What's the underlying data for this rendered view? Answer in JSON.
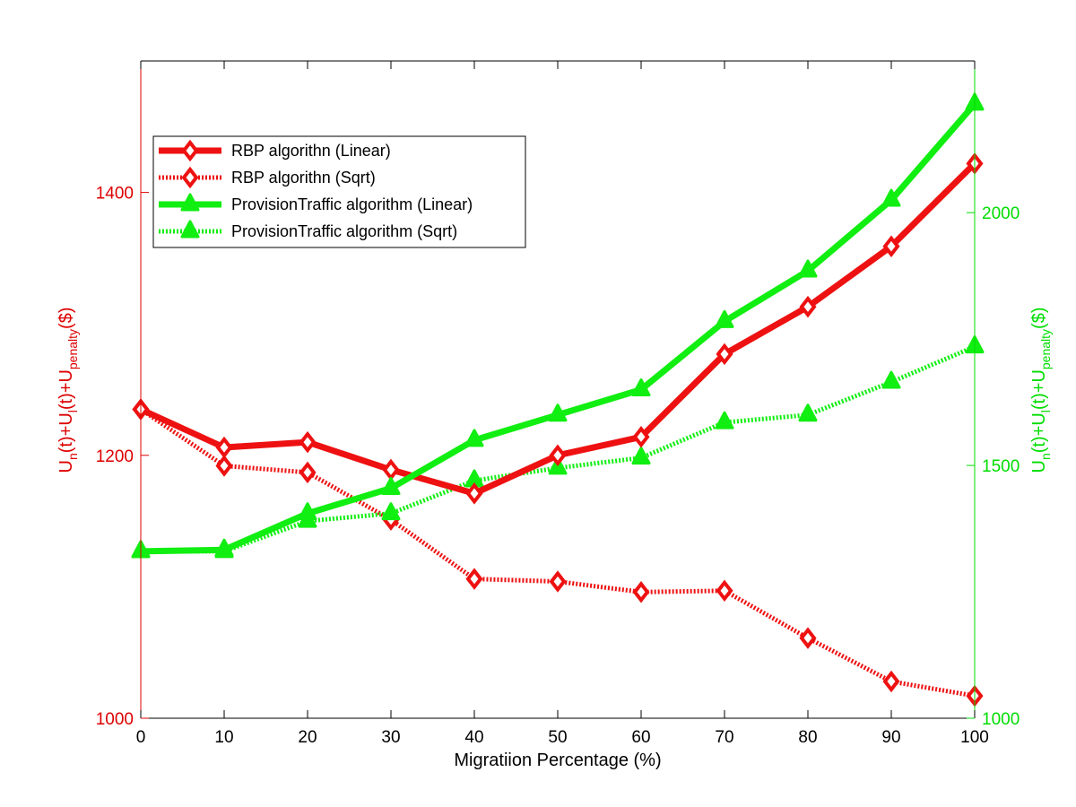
{
  "chart_data": {
    "type": "line",
    "x": [
      0,
      10,
      20,
      30,
      40,
      50,
      60,
      70,
      80,
      90,
      100
    ],
    "xlabel": "Migratiion Percentage (%)",
    "xlim": [
      0,
      100
    ],
    "xticks": [
      "0",
      "10",
      "20",
      "30",
      "40",
      "50",
      "60",
      "70",
      "80",
      "90",
      "100"
    ],
    "ylabel_left": {
      "base": "U",
      "parts": [
        {
          "t": "U"
        },
        {
          "t": "n",
          "sub": true
        },
        {
          "t": "(t)+U"
        },
        {
          "t": "l",
          "sub": true
        },
        {
          "t": "(t)+U"
        },
        {
          "t": "penalty",
          "sub": true
        },
        {
          "t": "($)"
        }
      ]
    },
    "ylabel_right": {
      "parts": [
        {
          "t": "U"
        },
        {
          "t": "n",
          "sub": true
        },
        {
          "t": "(t)+U"
        },
        {
          "t": "l",
          "sub": true
        },
        {
          "t": "(t)+U"
        },
        {
          "t": "penalty",
          "sub": true
        },
        {
          "t": "($)"
        }
      ]
    },
    "ylim_left": [
      1000,
      1500
    ],
    "yticks_left": [
      "1000",
      "1200",
      "1400"
    ],
    "ylim_right": [
      1000,
      2300
    ],
    "yticks_right": [
      "1000",
      "1500",
      "2000"
    ],
    "grid": false,
    "legend_position": "top-left",
    "colors": {
      "red": "#ee1111",
      "green": "#11ee11",
      "red_axis": "#dd0000",
      "green_axis": "#00dd00"
    },
    "series": [
      {
        "name": "RBP algorithn (Linear)",
        "axis": "left",
        "style": "solid",
        "marker": "diamond",
        "color": "#ee1111",
        "values": [
          1235,
          1206,
          1210,
          1189,
          1171,
          1200,
          1214,
          1277,
          1313,
          1359,
          1422
        ]
      },
      {
        "name": "RBP algorithn (Sqrt)",
        "axis": "left",
        "style": "dotted",
        "marker": "diamond",
        "color": "#ee1111",
        "values": [
          1235,
          1192,
          1187,
          1151,
          1106,
          1104,
          1096,
          1097,
          1061,
          1028,
          1017
        ]
      },
      {
        "name": "ProvisionTraffic algorithm (Linear)",
        "axis": "right",
        "style": "solid",
        "marker": "triangle",
        "color": "#11ee11",
        "values": [
          1330,
          1333,
          1405,
          1455,
          1550,
          1600,
          1650,
          1785,
          1885,
          2025,
          2215
        ]
      },
      {
        "name": "ProvisionTraffic algorithm (Sqrt)",
        "axis": "right",
        "style": "dotted",
        "marker": "triangle",
        "color": "#11ee11",
        "values": [
          1330,
          1330,
          1390,
          1405,
          1470,
          1495,
          1515,
          1585,
          1600,
          1665,
          1735
        ]
      }
    ]
  }
}
